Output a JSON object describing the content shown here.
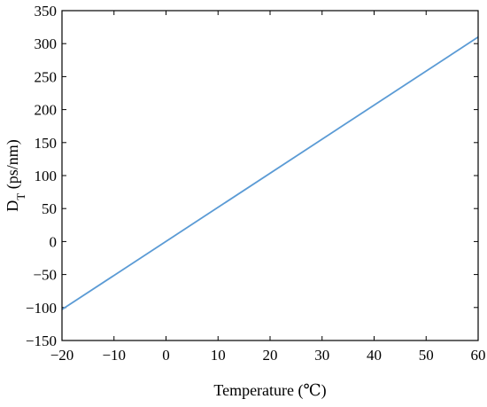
{
  "chart_data": {
    "type": "line",
    "title": "",
    "xlabel": "Temperature (℃)",
    "ylabel": "D_T (ps/nm)",
    "ylabel_main": "D",
    "ylabel_sub": "T",
    "ylabel_rest": " (ps/nm)",
    "xlim": [
      -20,
      60
    ],
    "ylim": [
      -150,
      350
    ],
    "xticks": [
      -20,
      -10,
      0,
      10,
      20,
      30,
      40,
      50,
      60
    ],
    "yticks": [
      -150,
      -100,
      -50,
      0,
      50,
      100,
      150,
      200,
      250,
      300,
      350
    ],
    "xtick_labels": [
      "−20",
      "−10",
      "0",
      "10",
      "20",
      "30",
      "40",
      "50",
      "60"
    ],
    "ytick_labels": [
      "−150",
      "−100",
      "−50",
      "0",
      "50",
      "100",
      "150",
      "200",
      "250",
      "300",
      "350"
    ],
    "grid": false,
    "legend": "none",
    "series": [
      {
        "x": [
          -20,
          60
        ],
        "y": [
          -103,
          310
        ],
        "color": "#5b9bd5"
      }
    ]
  }
}
